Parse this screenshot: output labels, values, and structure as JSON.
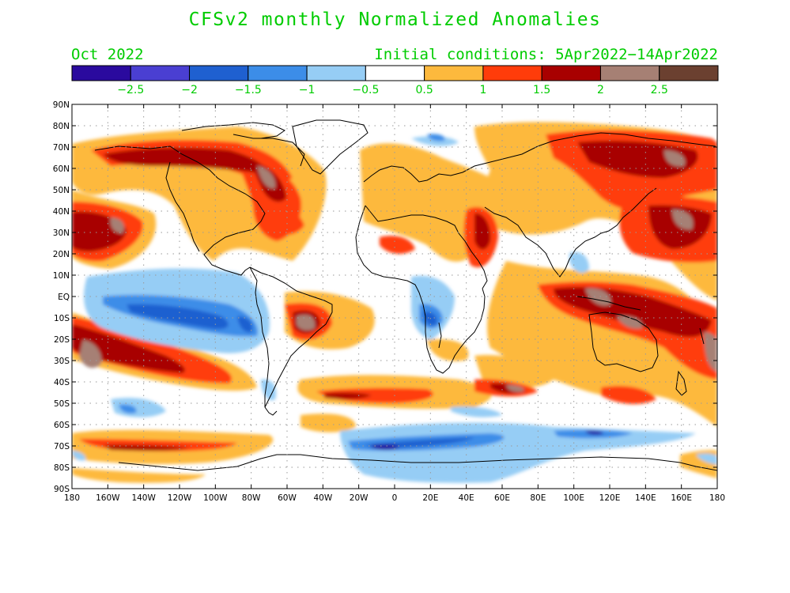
{
  "title": "CFSv2 monthly Normalized Anomalies",
  "forecast_month": "Oct 2022",
  "initial_conditions": "Initial conditions: 5Apr2022−14Apr2022",
  "colorbar": {
    "colors": [
      "#2a0a9e",
      "#4a3fd2",
      "#1f60d0",
      "#3c8de8",
      "#96cdf5",
      "#ffffff",
      "#fdb93d",
      "#ff3c0a",
      "#a80000",
      "#a68074",
      "#6b4030"
    ],
    "labels": [
      "−2.5",
      "−2",
      "−1.5",
      "−1",
      "−0.5",
      "0.5",
      "1",
      "1.5",
      "2",
      "2.5"
    ]
  },
  "map": {
    "projection": "cylindrical-equidistant",
    "lon_range": [
      -180,
      180
    ],
    "lat_range": [
      -90,
      90
    ],
    "lat_ticks": [
      "90N",
      "80N",
      "70N",
      "60N",
      "50N",
      "40N",
      "30N",
      "20N",
      "10N",
      "EQ",
      "10S",
      "20S",
      "30S",
      "40S",
      "50S",
      "60S",
      "70S",
      "80S",
      "90S"
    ],
    "lon_ticks": [
      "180",
      "160W",
      "140W",
      "120W",
      "100W",
      "80W",
      "60W",
      "40W",
      "20W",
      "0",
      "20E",
      "40E",
      "60E",
      "80E",
      "100E",
      "120E",
      "140E",
      "160E",
      "180"
    ],
    "grid": "dotted",
    "coastline_color": "#000000"
  }
}
